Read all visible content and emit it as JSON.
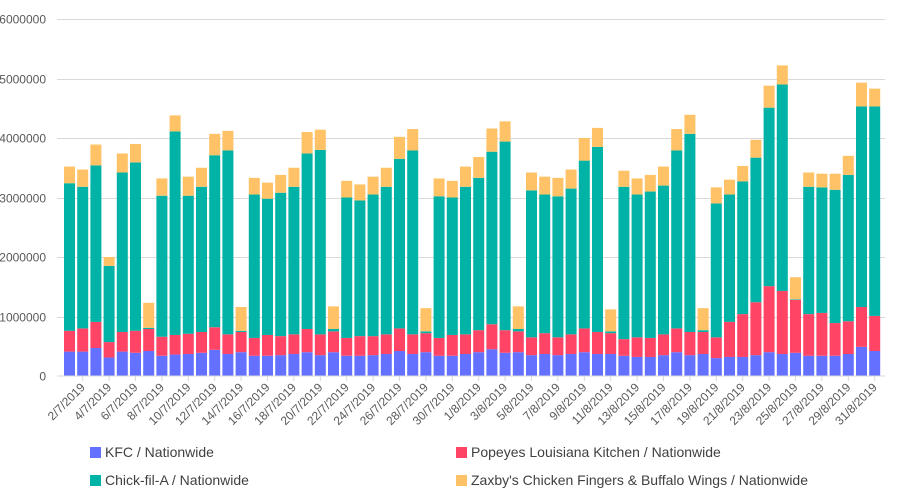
{
  "chart_data": {
    "type": "bar",
    "stacked": true,
    "title": "",
    "xlabel": "",
    "ylabel": "",
    "ylim": [
      0,
      6000000
    ],
    "yticks": [
      0,
      1000000,
      2000000,
      3000000,
      4000000,
      5000000,
      6000000
    ],
    "ytick_labels": [
      "0",
      "1000000",
      "2000000",
      "3000000",
      "4000000",
      "5000000",
      "6000000"
    ],
    "grid": true,
    "legend_position": "bottom",
    "categories": [
      "1/7/2019",
      "2/7/2019",
      "3/7/2019",
      "4/7/2019",
      "5/7/2019",
      "6/7/2019",
      "7/7/2019",
      "8/7/2019",
      "9/7/2019",
      "10/7/2019",
      "11/7/2019",
      "12/7/2019",
      "13/7/2019",
      "14/7/2019",
      "15/7/2019",
      "16/7/2019",
      "17/7/2019",
      "18/7/2019",
      "19/7/2019",
      "20/7/2019",
      "21/7/2019",
      "22/7/2019",
      "23/7/2019",
      "24/7/2019",
      "25/7/2019",
      "26/7/2019",
      "27/7/2019",
      "28/7/2019",
      "29/7/2019",
      "30/7/2019",
      "31/7/2019",
      "1/8/2019",
      "2/8/2019",
      "3/8/2019",
      "4/8/2019",
      "5/8/2019",
      "6/8/2019",
      "7/8/2019",
      "8/8/2019",
      "9/8/2019",
      "10/8/2019",
      "11/8/2019",
      "12/8/2019",
      "13/8/2019",
      "14/8/2019",
      "15/8/2019",
      "16/8/2019",
      "17/8/2019",
      "18/8/2019",
      "19/8/2019",
      "20/8/2019",
      "21/8/2019",
      "22/8/2019",
      "23/8/2019",
      "24/8/2019",
      "25/8/2019",
      "26/8/2019",
      "27/8/2019",
      "28/8/2019",
      "29/8/2019",
      "30/8/2019",
      "31/8/2019"
    ],
    "xtick_labels": [
      "2/7/2019",
      "4/7/2019",
      "6/7/2019",
      "8/7/2019",
      "10/7/2019",
      "12/7/2019",
      "14/7/2019",
      "16/7/2019",
      "18/7/2019",
      "20/7/2019",
      "22/7/2019",
      "24/7/2019",
      "26/7/2019",
      "28/7/2019",
      "30/7/2019",
      "1/8/2019",
      "3/8/2019",
      "5/8/2019",
      "7/8/2019",
      "9/8/2019",
      "11/8/2019",
      "13/8/2019",
      "15/8/2019",
      "17/8/2019",
      "19/8/2019",
      "21/8/2019",
      "23/8/2019",
      "25/8/2019",
      "27/8/2019",
      "29/8/2019",
      "31/8/2019"
    ],
    "series": [
      {
        "name": "KFC / Nationwide",
        "color": "#6470FF",
        "values": [
          410000,
          410000,
          470000,
          310000,
          410000,
          390000,
          420000,
          340000,
          360000,
          370000,
          390000,
          440000,
          370000,
          400000,
          340000,
          340000,
          350000,
          370000,
          400000,
          350000,
          400000,
          340000,
          340000,
          350000,
          370000,
          420000,
          370000,
          400000,
          340000,
          340000,
          370000,
          400000,
          450000,
          390000,
          400000,
          350000,
          370000,
          350000,
          370000,
          400000,
          370000,
          370000,
          340000,
          320000,
          320000,
          350000,
          400000,
          350000,
          370000,
          300000,
          320000,
          320000,
          350000,
          400000,
          370000,
          390000,
          340000,
          340000,
          340000,
          370000,
          490000,
          420000
        ]
      },
      {
        "name": "Popeyes Louisiana Kitchen / Nationwide",
        "color": "#FF4466",
        "values": [
          350000,
          390000,
          440000,
          260000,
          330000,
          370000,
          370000,
          320000,
          330000,
          340000,
          350000,
          380000,
          330000,
          340000,
          300000,
          350000,
          320000,
          330000,
          390000,
          350000,
          350000,
          300000,
          330000,
          320000,
          330000,
          380000,
          330000,
          320000,
          300000,
          350000,
          330000,
          370000,
          420000,
          380000,
          350000,
          300000,
          350000,
          300000,
          330000,
          400000,
          370000,
          350000,
          280000,
          330000,
          320000,
          350000,
          400000,
          390000,
          370000,
          350000,
          590000,
          720000,
          890000,
          1110000,
          1060000,
          890000,
          700000,
          720000,
          550000,
          550000,
          670000,
          590000
        ]
      },
      {
        "name": "Chick-fil-A / Nationwide",
        "color": "#00B3A6",
        "values": [
          2480000,
          2380000,
          2630000,
          1280000,
          2680000,
          2830000,
          20000,
          2370000,
          3420000,
          2320000,
          2440000,
          2890000,
          3090000,
          20000,
          2410000,
          2290000,
          2410000,
          2480000,
          2950000,
          3100000,
          40000,
          2360000,
          2280000,
          2380000,
          2480000,
          2850000,
          3090000,
          30000,
          2380000,
          2310000,
          2480000,
          2560000,
          2900000,
          3170000,
          40000,
          2470000,
          2330000,
          2370000,
          2450000,
          2820000,
          3110000,
          30000,
          2560000,
          2400000,
          2460000,
          2500000,
          2990000,
          3330000,
          30000,
          2250000,
          2140000,
          2230000,
          2430000,
          3000000,
          3470000,
          10000,
          2140000,
          2110000,
          2240000,
          2460000,
          3370000,
          3520000
        ]
      },
      {
        "name": "Zaxby's Chicken Fingers & Buffalo Wings / Nationwide",
        "color": "#FFC266",
        "values": [
          280000,
          290000,
          350000,
          150000,
          320000,
          310000,
          420000,
          290000,
          270000,
          320000,
          320000,
          360000,
          330000,
          400000,
          280000,
          270000,
          300000,
          320000,
          360000,
          340000,
          380000,
          280000,
          270000,
          300000,
          320000,
          370000,
          360000,
          390000,
          300000,
          280000,
          340000,
          350000,
          390000,
          340000,
          380000,
          300000,
          300000,
          310000,
          320000,
          380000,
          320000,
          370000,
          270000,
          270000,
          280000,
          320000,
          360000,
          320000,
          370000,
          270000,
          250000,
          260000,
          300000,
          370000,
          320000,
          370000,
          240000,
          230000,
          270000,
          320000,
          400000,
          300000
        ]
      }
    ]
  }
}
